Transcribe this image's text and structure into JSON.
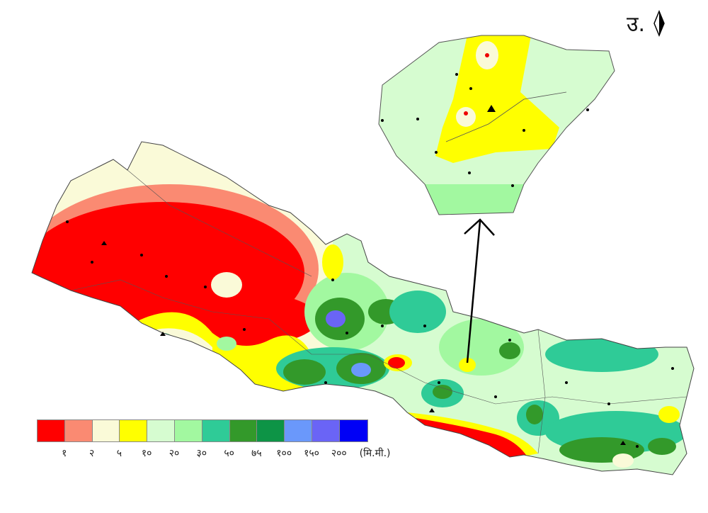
{
  "north_label": "उ.",
  "legend": {
    "unit": "(मि.मी.)",
    "colors": [
      "#ff0000",
      "#fa8a72",
      "#fafad8",
      "#ffff00",
      "#d6fcd0",
      "#a2f8a0",
      "#2fcb97",
      "#33992a",
      "#0d9446",
      "#6a98fb",
      "#6a64f6",
      "#0000f6"
    ],
    "labels": [
      "१",
      "२",
      "५",
      "१०",
      "२०",
      "३०",
      "५०",
      "७५",
      "१००",
      "१५०",
      "२००"
    ]
  }
}
